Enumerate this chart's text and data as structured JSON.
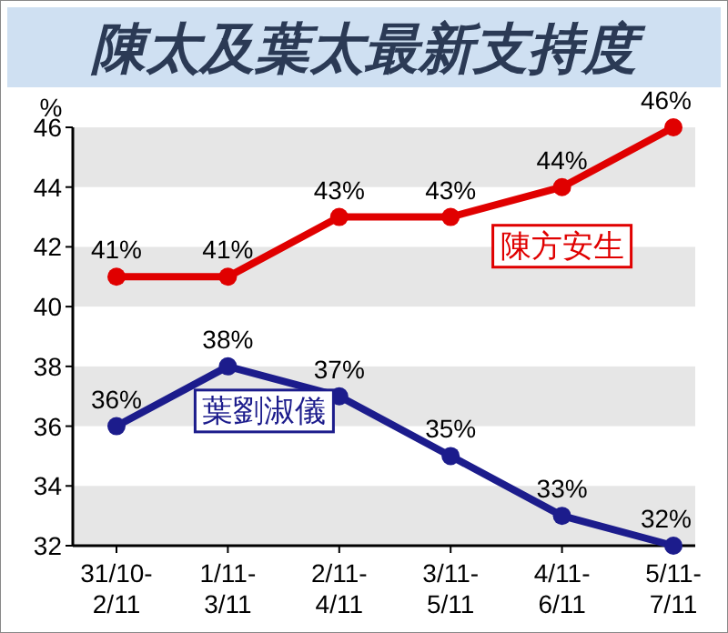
{
  "chart_data": {
    "type": "line",
    "title": "陳太及葉太最新支持度",
    "ylabel": "%",
    "categories": [
      "31/10-2/11",
      "1/11-3/11",
      "2/11-4/11",
      "3/11-5/11",
      "4/11-6/11",
      "5/11-7/11"
    ],
    "series": [
      {
        "name": "陳方安生",
        "color": "#e00000",
        "values": [
          41,
          41,
          43,
          43,
          44,
          46
        ],
        "value_labels": [
          "41%",
          "41%",
          "43%",
          "43%",
          "44%",
          "46%"
        ]
      },
      {
        "name": "葉劉淑儀",
        "color": "#1c1c8c",
        "values": [
          36,
          38,
          37,
          35,
          33,
          32
        ],
        "value_labels": [
          "36%",
          "38%",
          "37%",
          "35%",
          "33%",
          "32%"
        ]
      }
    ],
    "ylim": [
      32,
      46
    ],
    "yticks": [
      32,
      34,
      36,
      38,
      40,
      42,
      44,
      46
    ],
    "marker": "circle",
    "line_style": "solid"
  }
}
